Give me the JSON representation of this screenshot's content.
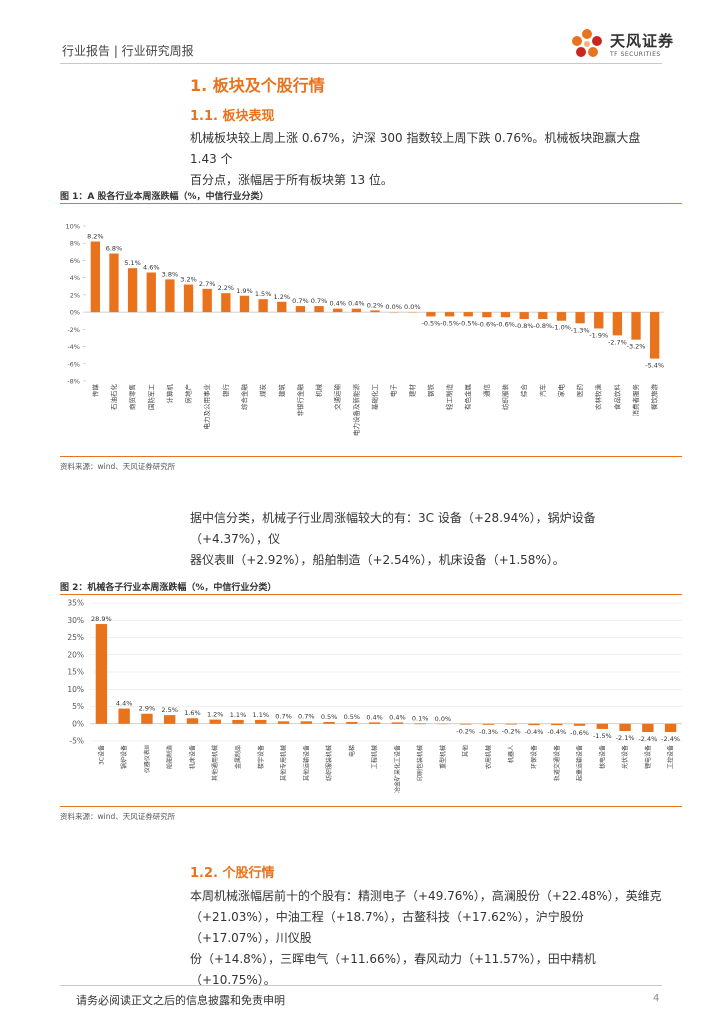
{
  "header": {
    "left": "行业报告 | 行业研究周报",
    "logo_name": "天风证券",
    "logo_en": "TF SECURITIES"
  },
  "section1": {
    "title": "1. 板块及个股行情",
    "sub1": "1.1. 板块表现",
    "para1_line1": "机械板块较上周上涨 0.67%，沪深 300 指数较上周下跌 0.76%。机械板块跑赢大盘 1.43 个",
    "para1_line2": "百分点，涨幅居于所有板块第 13 位。",
    "para2_line1": "据中信分类，机械子行业周涨幅较大的有：3C 设备（+28.94%），锅炉设备（+4.37%），仪",
    "para2_line2": "器仪表Ⅲ（+2.92%），船舶制造（+2.54%），机床设备（+1.58%）。",
    "sub2": "1.2. 个股行情",
    "para3_line1": "本周机械涨幅居前十的个股有：精测电子（+49.76%），高澜股份（+22.48%），英维克",
    "para3_line2": "（+21.03%），中油工程（+18.7%），古鳌科技（+17.62%），沪宁股份（+17.07%），川仪股",
    "para3_line3": "份（+14.8%），三晖电气（+11.66%），春风动力（+11.57%），田中精机（+10.75%）。"
  },
  "fig1": {
    "title": "图 1：A 股各行业本周涨跌幅（%，中信行业分类）",
    "source": "资料来源：wind、天风证券研究所"
  },
  "fig2": {
    "title": "图 2：机械各子行业本周涨跌幅（%，中信行业分类）",
    "source": "资料来源：wind、天风证券研究所"
  },
  "footer": {
    "disclaimer": "请务必阅读正文之后的信息披露和免责申明",
    "page": "4"
  },
  "chart_data": [
    {
      "type": "bar",
      "color": "#e9731d",
      "ylim": [
        -8,
        10
      ],
      "yticks": [
        "10%",
        "8%",
        "6%",
        "4%",
        "2%",
        "0%",
        "-2%",
        "-4%",
        "-6%",
        "-8%"
      ],
      "categories": [
        "传媒",
        "石油石化",
        "商贸零售",
        "国防军工",
        "计算机",
        "房地产",
        "电力及公用事业",
        "银行",
        "综合金融",
        "煤炭",
        "建筑",
        "非银行金融",
        "机械",
        "交通运输",
        "电力设备及新能源",
        "基础化工",
        "电子",
        "建材",
        "钢铁",
        "轻工制造",
        "有色金属",
        "通信",
        "纺织服装",
        "综合",
        "汽车",
        "家电",
        "医药",
        "农林牧渔",
        "食品饮料",
        "消费者服务",
        "餐饮旅游"
      ],
      "values": [
        8.2,
        6.8,
        5.1,
        4.6,
        3.8,
        3.2,
        2.7,
        2.2,
        1.9,
        1.5,
        1.2,
        0.7,
        0.7,
        0.4,
        0.4,
        0.2,
        0.0,
        0.0,
        -0.5,
        -0.5,
        -0.5,
        -0.6,
        -0.6,
        -0.8,
        -0.8,
        -1.0,
        -1.3,
        -1.9,
        -2.7,
        -3.2,
        -5.4
      ],
      "labels": [
        "8.2%",
        "6.8%",
        "5.1%",
        "4.6%",
        "3.8%",
        "3.2%",
        "2.7%",
        "2.2%",
        "1.9%",
        "1.5%",
        "1.2%",
        "0.7%",
        "0.7%",
        "0.4%",
        "0.4%",
        "0.2%",
        "0.0%",
        "0.0%",
        "-0.5%",
        "-0.5%",
        "-0.5%",
        "-0.6%",
        "-0.6%",
        "-0.8%",
        "-0.8%",
        "-1.0%",
        "-1.3%",
        "-1.9%",
        "-2.7%",
        "-3.2%",
        "-5.4%"
      ]
    },
    {
      "type": "bar",
      "color": "#e9731d",
      "ylim": [
        -5,
        35
      ],
      "yticks": [
        "35%",
        "30%",
        "25%",
        "20%",
        "15%",
        "10%",
        "5%",
        "0%",
        "-5%"
      ],
      "categories": [
        "3C设备",
        "锅炉设备",
        "仪器仪表Ⅲ",
        "船舶制造",
        "机床设备",
        "其他通用机械",
        "金属制品",
        "楼宇设备",
        "其他专用机械",
        "其他运输设备",
        "纺织服装机械",
        "电梯",
        "工程机械",
        "冶金矿采化工设备",
        "印刷包装机械",
        "重型机械",
        "其他",
        "农用机械",
        "机器人",
        "环保设备",
        "轨道交通设备",
        "起重运输设备",
        "核电设备",
        "光伏设备",
        "锂电设备",
        "工控设备"
      ],
      "values": [
        28.9,
        4.4,
        2.9,
        2.5,
        1.6,
        1.2,
        1.1,
        1.1,
        0.7,
        0.7,
        0.5,
        0.5,
        0.4,
        0.4,
        0.1,
        0.0,
        -0.2,
        -0.3,
        -0.2,
        -0.4,
        -0.4,
        -0.6,
        -1.5,
        -2.1,
        -2.4,
        -2.4
      ],
      "labels": [
        "28.9%",
        "4.4%",
        "2.9%",
        "2.5%",
        "1.6%",
        "1.2%",
        "1.1%",
        "1.1%",
        "0.7%",
        "0.7%",
        "0.5%",
        "0.5%",
        "0.4%",
        "0.4%",
        "0.1%",
        "0.0%",
        "-0.2%",
        "-0.3%",
        "-0.2%",
        "-0.4%",
        "-0.4%",
        "-0.6%",
        "-1.5%",
        "-2.1%",
        "-2.4%",
        "-2.4%"
      ]
    }
  ]
}
